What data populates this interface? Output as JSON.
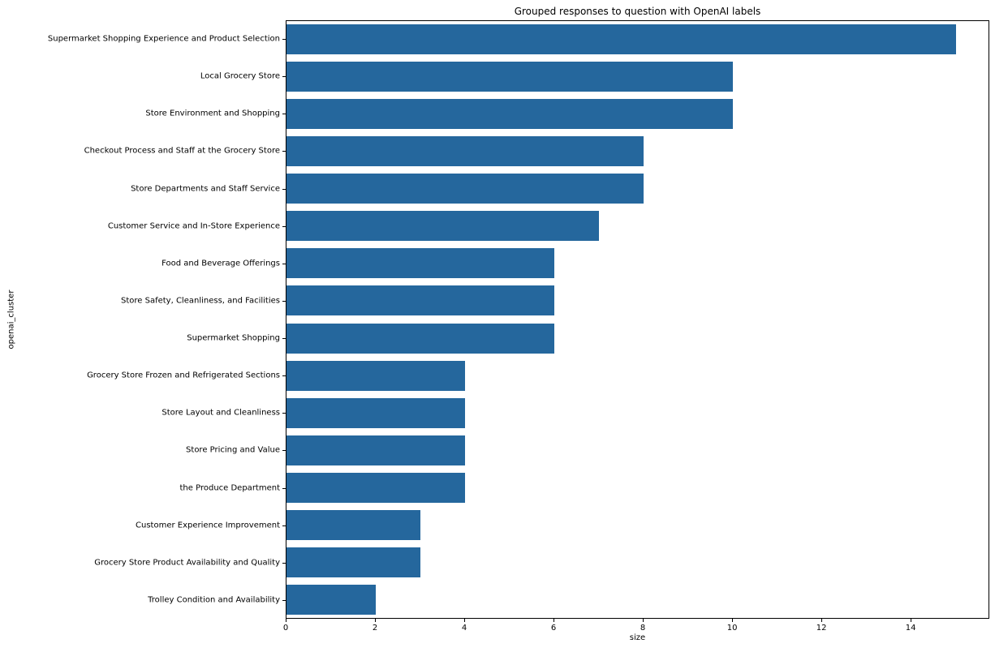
{
  "chart_data": {
    "type": "bar",
    "orientation": "horizontal",
    "title": "Grouped responses to question with OpenAI labels",
    "xlabel": "size",
    "ylabel": "openai_cluster",
    "categories": [
      "Supermarket Shopping Experience and Product Selection",
      "Local Grocery Store",
      "Store Environment and Shopping",
      "Checkout Process and Staff at the Grocery Store",
      "Store Departments and Staff Service",
      "Customer Service and In-Store Experience",
      "Food and Beverage Offerings",
      "Store Safety, Cleanliness, and Facilities",
      "Supermarket Shopping",
      "Grocery Store Frozen and Refrigerated Sections",
      "Store Layout and Cleanliness",
      "Store Pricing and Value",
      "the Produce Department",
      "Customer Experience Improvement",
      "Grocery Store Product Availability and Quality",
      "Trolley Condition and Availability"
    ],
    "values": [
      15,
      10,
      10,
      8,
      8,
      7,
      6,
      6,
      6,
      4,
      4,
      4,
      4,
      3,
      3,
      2
    ],
    "xticks": [
      0,
      2,
      4,
      6,
      8,
      10,
      12,
      14
    ],
    "xlim": [
      0,
      15.76
    ],
    "grid": false,
    "legend": "none",
    "bar_color": "#25679D"
  }
}
